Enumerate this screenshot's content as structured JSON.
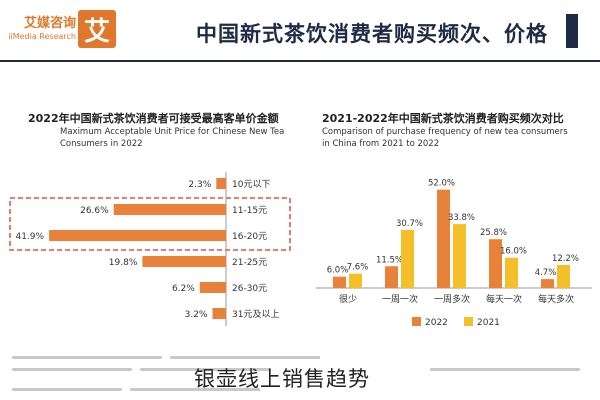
{
  "header": {
    "title": "中国新式茶饮消费者购买频次、价格",
    "brand_name": "艾媒咨询",
    "brand_sub": "iiMedia Research",
    "logo_char": "艾"
  },
  "colors": {
    "orange": "#e8823a",
    "yellow": "#f5bf2a",
    "navy": "#1f2a44",
    "highlight_border": "#d9534f"
  },
  "watermark": "银壶线上销售趋势",
  "chart_data": [
    {
      "type": "bar",
      "orientation": "horizontal",
      "title": "2022年中国新式茶饮消费者可接受最高客单价金额",
      "subtitle": "Maximum Acceptable Unit Price for Chinese New Tea Consumers in 2022",
      "categories": [
        "10元以下",
        "11-15元",
        "16-20元",
        "21-25元",
        "26-30元",
        "31元及以上"
      ],
      "values": [
        2.3,
        26.6,
        41.9,
        19.8,
        6.2,
        3.2
      ],
      "value_labels": [
        "2.3%",
        "26.6%",
        "41.9%",
        "19.8%",
        "6.2%",
        "3.2%"
      ],
      "highlighted": [
        "11-15元",
        "16-20元"
      ],
      "xlim": [
        0,
        45
      ],
      "legend": "none"
    },
    {
      "type": "bar",
      "title": "2021-2022年中国新式茶饮消费者购买频次对比",
      "subtitle": "Comparison of purchase frequency of new tea consumers in China from 2021 to 2022",
      "categories": [
        "很少",
        "一周一次",
        "一周多次",
        "每天一次",
        "每天多次"
      ],
      "series": [
        {
          "name": "2022",
          "values": [
            6.0,
            11.5,
            52.0,
            25.8,
            4.7
          ],
          "value_labels": [
            "6.0%",
            "11.5%",
            "52.0%",
            "25.8%",
            "4.7%"
          ]
        },
        {
          "name": "2021",
          "values": [
            7.6,
            30.7,
            33.8,
            16.0,
            12.2
          ],
          "value_labels": [
            "7.6%",
            "30.7%",
            "33.8%",
            "16.0%",
            "12.2%"
          ]
        }
      ],
      "ylim": [
        0,
        55
      ],
      "legend": "bottom"
    }
  ]
}
